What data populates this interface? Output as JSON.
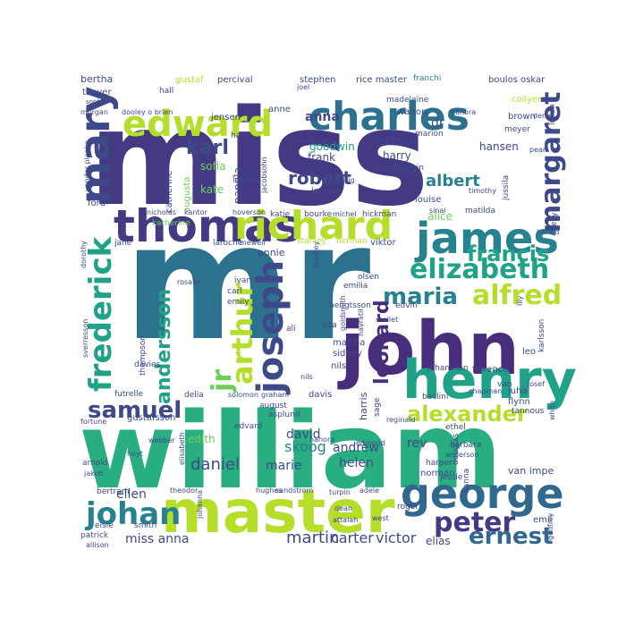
{
  "palette": [
    "#482878",
    "#3e4989",
    "#31688e",
    "#26828e",
    "#1f9e89",
    "#35b779",
    "#6ece58",
    "#b5de2b",
    "#fde725"
  ],
  "words": [
    {
      "text": "miss",
      "color": "#443983"
    },
    {
      "text": "mr",
      "color": "#2c728e"
    },
    {
      "text": "william",
      "color": "#28ae80"
    },
    {
      "text": "john",
      "color": "#472d7b"
    },
    {
      "text": "master",
      "color": "#b5de2b"
    },
    {
      "text": "henry",
      "color": "#1fa287"
    },
    {
      "text": "thomas",
      "color": "#443983"
    },
    {
      "text": "richard",
      "color": "#b5de2b"
    },
    {
      "text": "charles",
      "color": "#2c728e"
    },
    {
      "text": "edward",
      "color": "#b5de2b"
    },
    {
      "text": "james",
      "color": "#26828e"
    },
    {
      "text": "george",
      "color": "#31688e"
    },
    {
      "text": "mary",
      "color": "#3e4989"
    },
    {
      "text": "joseph",
      "color": "#3e4989"
    },
    {
      "text": "elizabeth",
      "color": "#1fa287"
    },
    {
      "text": "frederick",
      "color": "#1fa287"
    },
    {
      "text": "margaret",
      "color": "#3e4989"
    },
    {
      "text": "alfred",
      "color": "#b5de2b"
    },
    {
      "text": "johan",
      "color": "#26828e"
    },
    {
      "text": "arthur",
      "color": "#b5de2b"
    },
    {
      "text": "alexander",
      "color": "#b5de2b"
    },
    {
      "text": "maria",
      "color": "#26828e"
    },
    {
      "text": "peter",
      "color": "#443983"
    },
    {
      "text": "ernest",
      "color": "#31688e"
    },
    {
      "text": "samuel",
      "color": "#3e4989"
    },
    {
      "text": "andersson",
      "color": "#1fa287"
    },
    {
      "text": "leonard",
      "color": "#472d7b"
    },
    {
      "text": "francis",
      "color": "#1fa287"
    },
    {
      "text": "jr",
      "color": "#6ece58"
    },
    {
      "text": "karl",
      "color": "#3e4989"
    },
    {
      "text": "robert",
      "color": "#3e4989"
    },
    {
      "text": "albert",
      "color": "#26828e"
    },
    {
      "text": "anna",
      "color": "#3e4989"
    },
    {
      "text": "daniel",
      "color": "#3e4989"
    },
    {
      "text": "martin",
      "color": "#3e4989"
    },
    {
      "text": "carter",
      "color": "#3e4989"
    },
    {
      "text": "victor",
      "color": "#3e4989"
    },
    {
      "text": "miss anna",
      "color": "#3e4989"
    },
    {
      "text": "ellen",
      "color": "#3e4989"
    },
    {
      "text": "elias",
      "color": "#3e4989"
    },
    {
      "text": "david",
      "color": "#3e4989"
    },
    {
      "text": "andrew",
      "color": "#3e4989"
    },
    {
      "text": "helen",
      "color": "#3e4989"
    },
    {
      "text": "marie",
      "color": "#3e4989"
    },
    {
      "text": "skoog",
      "color": "#26828e"
    },
    {
      "text": "rev",
      "color": "#3e4989"
    },
    {
      "text": "edith",
      "color": "#6ece58"
    },
    {
      "text": "alice",
      "color": "#6ece58"
    },
    {
      "text": "florence",
      "color": "#3e4989"
    },
    {
      "text": "hansen",
      "color": "#3e4989"
    },
    {
      "text": "johnson",
      "color": "#3e4989"
    },
    {
      "text": "harry",
      "color": "#3e4989"
    },
    {
      "text": "frank",
      "color": "#3e4989"
    },
    {
      "text": "katherine",
      "color": "#6ece58"
    },
    {
      "text": "kate",
      "color": "#6ece58"
    },
    {
      "text": "sofia",
      "color": "#6ece58"
    },
    {
      "text": "catherine",
      "color": "#3e4989"
    },
    {
      "text": "panula",
      "color": "#3e4989"
    },
    {
      "text": "augusta",
      "color": "#6ece58"
    },
    {
      "text": "goodwin",
      "color": "#1fa287"
    },
    {
      "text": "dr",
      "color": "#3e4989"
    },
    {
      "text": "anne",
      "color": "#3e4989"
    },
    {
      "text": "bertha",
      "color": "#3e4989"
    },
    {
      "text": "gustaf",
      "color": "#b5de2b"
    },
    {
      "text": "percival",
      "color": "#3e4989"
    },
    {
      "text": "hall",
      "color": "#3e4989"
    },
    {
      "text": "rice master",
      "color": "#3e4989"
    },
    {
      "text": "boulos",
      "color": "#3e4989"
    },
    {
      "text": "oskar",
      "color": "#3e4989"
    },
    {
      "text": "stephen",
      "color": "#3e4989"
    },
    {
      "text": "franchi",
      "color": "#26828e"
    },
    {
      "text": "collyer",
      "color": "#b5de2b"
    },
    {
      "text": "brown",
      "color": "#3e4989"
    },
    {
      "text": "meyer",
      "color": "#3e4989"
    },
    {
      "text": "lillian",
      "color": "#3e4989"
    },
    {
      "text": "thayer",
      "color": "#3e4989"
    },
    {
      "text": "jensen",
      "color": "#3e4989"
    },
    {
      "text": "walton",
      "color": "#3e4989"
    },
    {
      "text": "madeleine",
      "color": "#3e4989"
    },
    {
      "text": "hans",
      "color": "#3e4989"
    },
    {
      "text": "wilhelm",
      "color": "#3e4989"
    },
    {
      "text": "benjamin",
      "color": "#3e4989"
    },
    {
      "text": "marion",
      "color": "#3e4989"
    },
    {
      "text": "larsson",
      "color": "#3e4989"
    },
    {
      "text": "lefebre",
      "color": "#3e4989"
    },
    {
      "text": "ernst",
      "color": "#3e4989"
    },
    {
      "text": "louise",
      "color": "#3e4989"
    },
    {
      "text": "ford",
      "color": "#3e4989"
    },
    {
      "text": "katie",
      "color": "#3e4989"
    },
    {
      "text": "bourke",
      "color": "#3e4989"
    },
    {
      "text": "michel",
      "color": "#3e4989"
    },
    {
      "text": "hickman",
      "color": "#3e4989"
    },
    {
      "text": "matilda",
      "color": "#3e4989"
    },
    {
      "text": "jane",
      "color": "#3e4989"
    },
    {
      "text": "laroche",
      "color": "#3e4989"
    },
    {
      "text": "mewell",
      "color": "#3e4989"
    },
    {
      "text": "stanley",
      "color": "#b5de2b"
    },
    {
      "text": "herman",
      "color": "#b5de2b"
    },
    {
      "text": "viktor",
      "color": "#3e4989"
    },
    {
      "text": "annie",
      "color": "#3e4989"
    },
    {
      "text": "emily",
      "color": "#3e4989"
    },
    {
      "text": "carl",
      "color": "#3e4989"
    },
    {
      "text": "ivan",
      "color": "#3e4989"
    },
    {
      "text": "olsen",
      "color": "#3e4989"
    },
    {
      "text": "emilia",
      "color": "#3e4989"
    },
    {
      "text": "bengtsson",
      "color": "#3e4989"
    },
    {
      "text": "edvin",
      "color": "#3e4989"
    },
    {
      "text": "martha",
      "color": "#3e4989"
    },
    {
      "text": "sidney",
      "color": "#3e4989"
    },
    {
      "text": "nils",
      "color": "#3e4989"
    },
    {
      "text": "ada",
      "color": "#3e4989"
    },
    {
      "text": "johansson",
      "color": "#3e4989"
    },
    {
      "text": "juha",
      "color": "#3e4989"
    },
    {
      "text": "flynn",
      "color": "#3e4989"
    },
    {
      "text": "harris",
      "color": "#3e4989"
    },
    {
      "text": "sage",
      "color": "#3e4989"
    },
    {
      "text": "baclini",
      "color": "#3e4989"
    },
    {
      "text": "reginald",
      "color": "#3e4989"
    },
    {
      "text": "august",
      "color": "#3e4989"
    },
    {
      "text": "asplund",
      "color": "#3e4989"
    },
    {
      "text": "davis",
      "color": "#3e4989"
    },
    {
      "text": "solomon",
      "color": "#3e4989"
    },
    {
      "text": "graham",
      "color": "#3e4989"
    },
    {
      "text": "delia",
      "color": "#3e4989"
    },
    {
      "text": "gustafsson",
      "color": "#3e4989"
    },
    {
      "text": "fortune",
      "color": "#3e4989"
    },
    {
      "text": "arnold",
      "color": "#3e4989"
    },
    {
      "text": "jakob",
      "color": "#3e4989"
    },
    {
      "text": "webber",
      "color": "#3e4989"
    },
    {
      "text": "edvard",
      "color": "#3e4989"
    },
    {
      "text": "barbara",
      "color": "#3e4989"
    },
    {
      "text": "anderson",
      "color": "#3e4989"
    },
    {
      "text": "harper",
      "color": "#3e4989"
    },
    {
      "text": "jessie",
      "color": "#3e4989"
    },
    {
      "text": "bertram",
      "color": "#3e4989"
    },
    {
      "text": "elsie",
      "color": "#3e4989"
    },
    {
      "text": "smith",
      "color": "#3e4989"
    },
    {
      "text": "patrick",
      "color": "#3e4989"
    },
    {
      "text": "allison",
      "color": "#3e4989"
    },
    {
      "text": "theodor",
      "color": "#3e4989"
    },
    {
      "text": "sandstrom",
      "color": "#3e4989"
    },
    {
      "text": "turpin",
      "color": "#3e4989"
    },
    {
      "text": "adele",
      "color": "#3e4989"
    },
    {
      "text": "roger",
      "color": "#3e4989"
    },
    {
      "text": "dean",
      "color": "#3e4989"
    },
    {
      "text": "attalah",
      "color": "#3e4989"
    },
    {
      "text": "west",
      "color": "#3e4989"
    },
    {
      "text": "hanna",
      "color": "#3e4989"
    },
    {
      "text": "douglas",
      "color": "#3e4989"
    },
    {
      "text": "van impe",
      "color": "#3e4989"
    },
    {
      "text": "emil",
      "color": "#3e4989"
    },
    {
      "text": "godfrey",
      "color": "#3e4989"
    },
    {
      "text": "norman",
      "color": "#3e4989"
    },
    {
      "text": "ethel",
      "color": "#3e4989"
    },
    {
      "text": "tannous",
      "color": "#3e4989"
    },
    {
      "text": "white",
      "color": "#3e4989"
    },
    {
      "text": "josef",
      "color": "#3e4989"
    },
    {
      "text": "van",
      "color": "#3e4989"
    },
    {
      "text": "leo",
      "color": "#3e4989"
    },
    {
      "text": "karlsson",
      "color": "#3e4989"
    },
    {
      "text": "kelly",
      "color": "#3e4989"
    },
    {
      "text": "harald",
      "color": "#3e4989"
    },
    {
      "text": "jussila",
      "color": "#3e4989"
    },
    {
      "text": "sinai",
      "color": "#3e4989"
    },
    {
      "text": "timothy",
      "color": "#3e4989"
    },
    {
      "text": "pears",
      "color": "#3e4989"
    },
    {
      "text": "denis",
      "color": "#3e4989"
    },
    {
      "text": "hanora",
      "color": "#3e4989"
    },
    {
      "text": "joel",
      "color": "#3e4989"
    },
    {
      "text": "dooley o brien",
      "color": "#3e4989"
    },
    {
      "text": "morgan",
      "color": "#3e4989"
    },
    {
      "text": "sophia",
      "color": "#3e4989"
    },
    {
      "text": "vander planke",
      "color": "#3e4989"
    },
    {
      "text": "nicholas",
      "color": "#3e4989"
    },
    {
      "text": "kantor",
      "color": "#3e4989"
    },
    {
      "text": "hoverson",
      "color": "#3e4989"
    },
    {
      "text": "jacobsohn",
      "color": "#3e4989"
    },
    {
      "text": "taussig",
      "color": "#3e4989"
    },
    {
      "text": "dorothy",
      "color": "#3e4989"
    },
    {
      "text": "sverresson",
      "color": "#3e4989"
    },
    {
      "text": "thompson",
      "color": "#3e4989"
    },
    {
      "text": "davies",
      "color": "#3e4989"
    },
    {
      "text": "futrelle",
      "color": "#3e4989"
    },
    {
      "text": "hoyt",
      "color": "#3e4989"
    },
    {
      "text": "elisabeth",
      "color": "#3e4989"
    },
    {
      "text": "ali",
      "color": "#3e4989"
    },
    {
      "text": "bradley",
      "color": "#3e4989"
    },
    {
      "text": "goldsmith",
      "color": "#3e4989"
    },
    {
      "text": "navratil",
      "color": "#3e4989"
    },
    {
      "text": "mallet",
      "color": "#3e4989"
    },
    {
      "text": "nils",
      "color": "#3e4989"
    },
    {
      "text": "edmond",
      "color": "#3e4989"
    },
    {
      "text": "chapman",
      "color": "#3e4989"
    },
    {
      "text": "johanna",
      "color": "#3e4989"
    },
    {
      "text": "hughes",
      "color": "#3e4989"
    },
    {
      "text": "hanora",
      "color": "#3e4989"
    },
    {
      "text": "rosalie",
      "color": "#3e4989"
    },
    {
      "text": "lily",
      "color": "#3e4989"
    },
    {
      "text": "pekka",
      "color": "#3e4989"
    }
  ]
}
